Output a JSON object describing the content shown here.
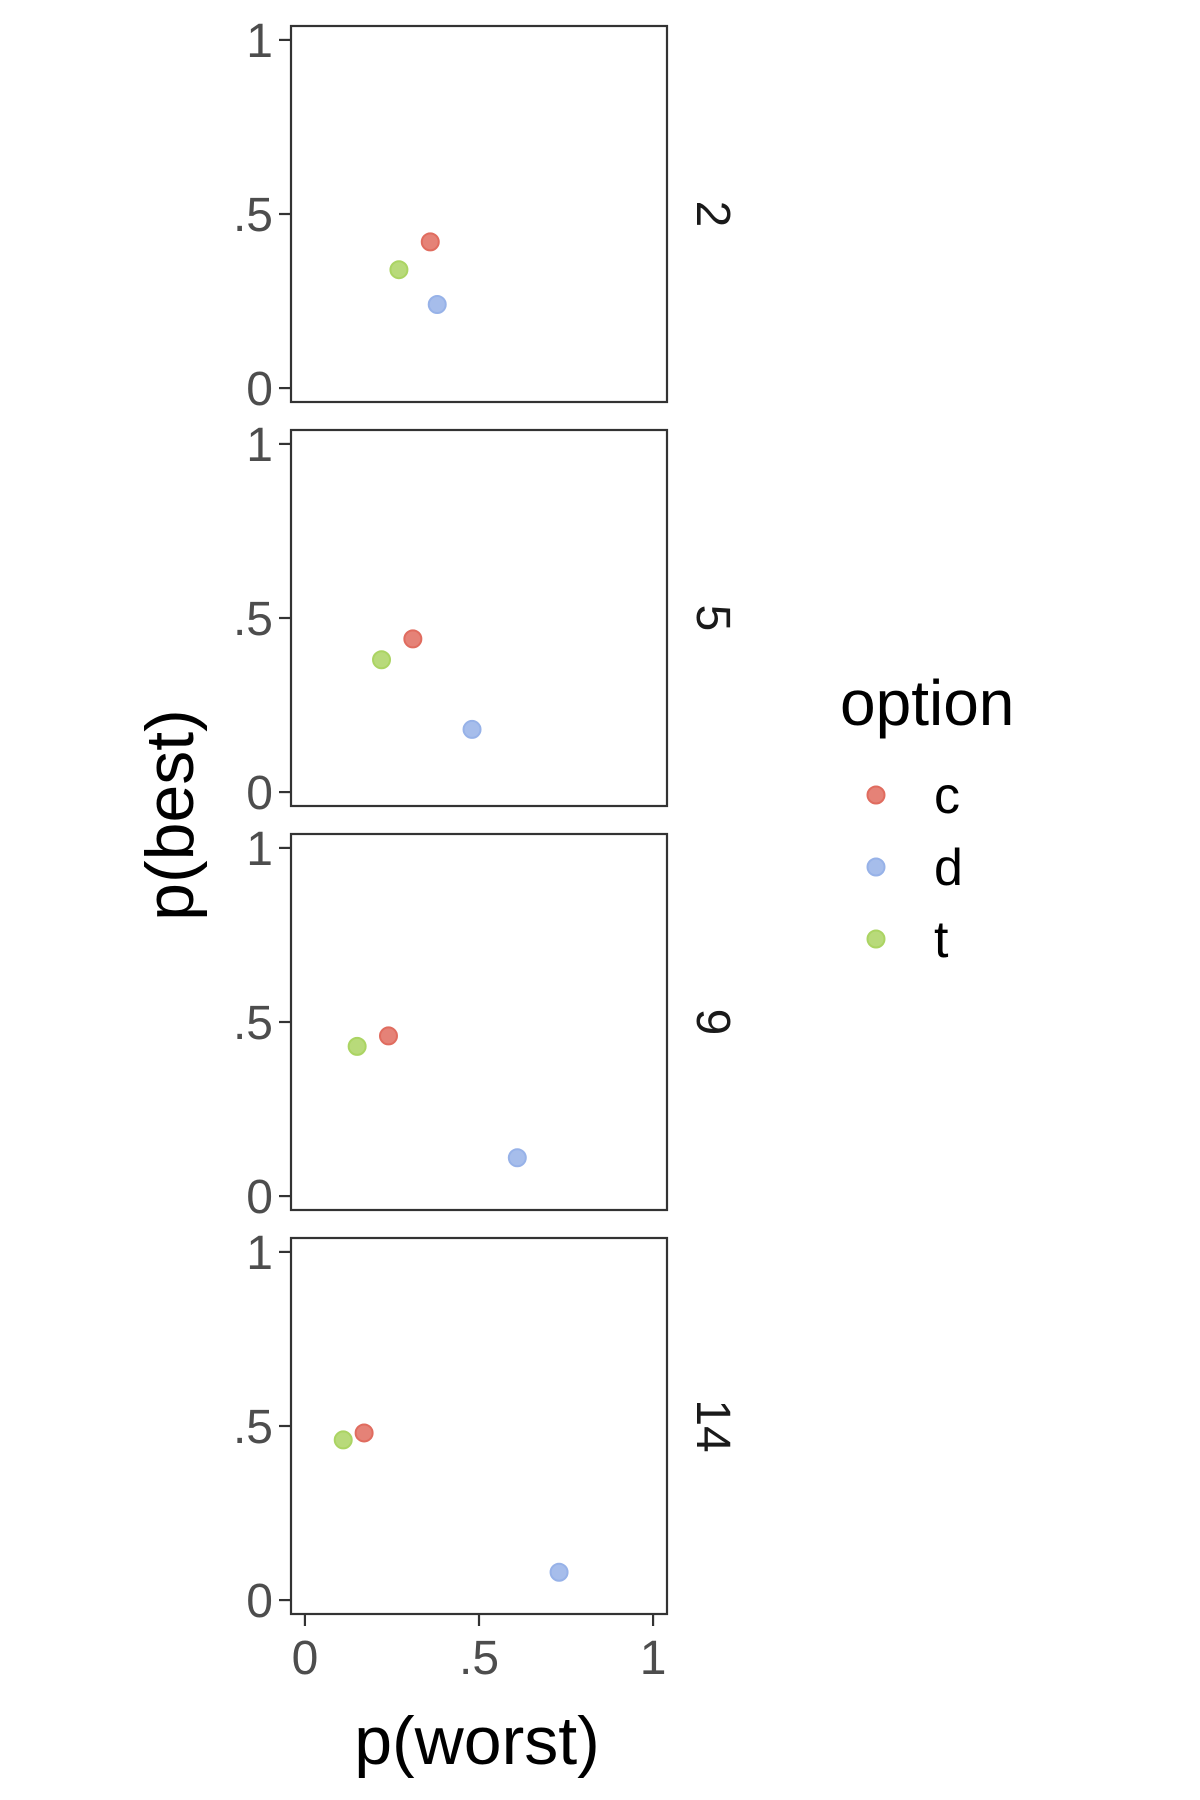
{
  "chart_data": {
    "type": "scatter",
    "xlabel": "p(worst)",
    "ylabel": "p(best)",
    "xlim": [
      -0.04,
      1.04
    ],
    "ylim": [
      -0.04,
      1.04
    ],
    "x_ticks": [
      {
        "value": 0,
        "label": "0"
      },
      {
        "value": 0.5,
        "label": ".5"
      },
      {
        "value": 1,
        "label": "1"
      }
    ],
    "y_ticks": [
      {
        "value": 0,
        "label": "0"
      },
      {
        "value": 0.5,
        "label": ".5"
      },
      {
        "value": 1,
        "label": "1"
      }
    ],
    "grid": false,
    "facet_position": "right",
    "legend": {
      "title": "option",
      "placement": "right",
      "entries": [
        {
          "label": "c",
          "color": "#E06C5F"
        },
        {
          "label": "d",
          "color": "#97B2E8"
        },
        {
          "label": "t",
          "color": "#ABD463"
        }
      ]
    },
    "facets": [
      {
        "label": "2",
        "points": [
          {
            "option": "c",
            "x": 0.36,
            "y": 0.42
          },
          {
            "option": "d",
            "x": 0.38,
            "y": 0.24
          },
          {
            "option": "t",
            "x": 0.27,
            "y": 0.34
          }
        ]
      },
      {
        "label": "5",
        "points": [
          {
            "option": "c",
            "x": 0.31,
            "y": 0.44
          },
          {
            "option": "d",
            "x": 0.48,
            "y": 0.18
          },
          {
            "option": "t",
            "x": 0.22,
            "y": 0.38
          }
        ]
      },
      {
        "label": "9",
        "points": [
          {
            "option": "c",
            "x": 0.24,
            "y": 0.46
          },
          {
            "option": "d",
            "x": 0.61,
            "y": 0.11
          },
          {
            "option": "t",
            "x": 0.15,
            "y": 0.43
          }
        ]
      },
      {
        "label": "14",
        "points": [
          {
            "option": "c",
            "x": 0.17,
            "y": 0.48
          },
          {
            "option": "d",
            "x": 0.73,
            "y": 0.08
          },
          {
            "option": "t",
            "x": 0.11,
            "y": 0.46
          }
        ]
      }
    ]
  }
}
